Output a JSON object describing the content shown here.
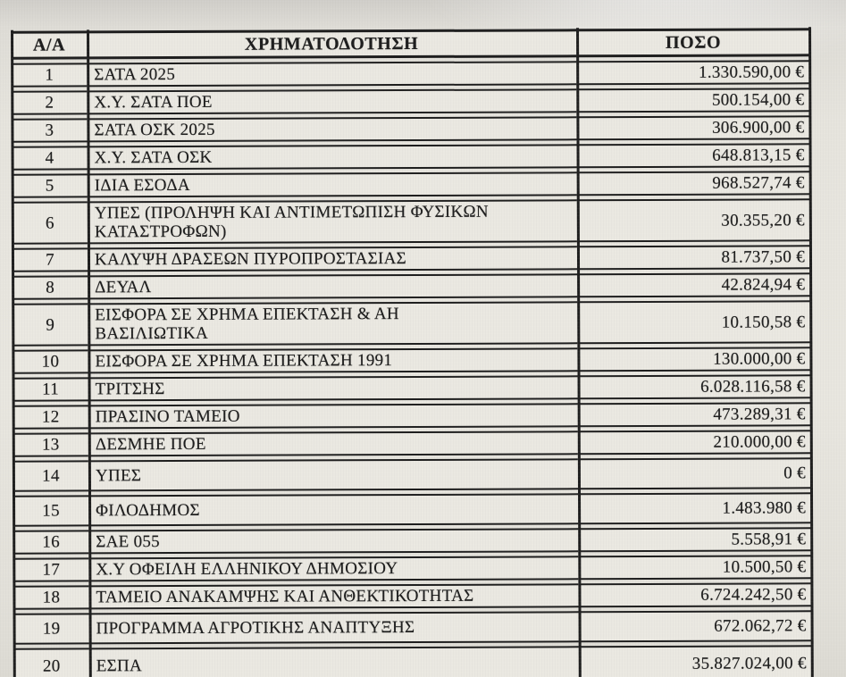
{
  "document": {
    "type": "scanned funding table",
    "colors": {
      "paper": "#e6e4dd",
      "cell": "#eae8e1",
      "ink": "#1d1d1d",
      "border": "#1e1e1e"
    },
    "table": {
      "headers": {
        "index": "Α/Α",
        "funding": "ΧΡΗΜΑΤΟΔΟΤΗΣΗ",
        "amount": "ΠΟΣΟ"
      },
      "rows": [
        {
          "no": "1",
          "name": "ΣΑΤΑ 2025",
          "amount": "1.330.590,00 €"
        },
        {
          "no": "2",
          "name": "Χ.Υ. ΣΑΤΑ ΠΟΕ",
          "amount": "500.154,00 €"
        },
        {
          "no": "3",
          "name": "ΣΑΤΑ ΟΣΚ 2025",
          "amount": "306.900,00 €"
        },
        {
          "no": "4",
          "name": "Χ.Υ. ΣΑΤΑ ΟΣΚ",
          "amount": "648.813,15 €"
        },
        {
          "no": "5",
          "name": "ΙΔΙΑ ΕΣΟΔΑ",
          "amount": "968.527,74 €"
        },
        {
          "no": "6",
          "name": "ΥΠΕΣ (ΠΡΟΛΗΨΗ ΚΑΙ ΑΝΤΙΜΕΤΩΠΙΣΗ ΦΥΣΙΚΩΝ\n ΚΑΤΑΣΤΡΟΦΩΝ)",
          "amount": "30.355,20 €"
        },
        {
          "no": "7",
          "name": "ΚΑΛΥΨΗ ΔΡΑΣΕΩΝ ΠΥΡΟΠΡΟΣΤΑΣΙΑΣ",
          "amount": "81.737,50 €"
        },
        {
          "no": "8",
          "name": "ΔΕΥΑΛ",
          "amount": "42.824,94 €"
        },
        {
          "no": "9",
          "name": "ΕΙΣΦΟΡΑ ΣΕ ΧΡΗΜΑ ΕΠΕΚΤΑΣΗ & ΑΗ\nΒΑΣΙΛΙΩΤΙΚΑ",
          "amount": "10.150,58 €"
        },
        {
          "no": "10",
          "name": "ΕΙΣΦΟΡΑ ΣΕ ΧΡΗΜΑ ΕΠΕΚΤΑΣΗ 1991",
          "amount": "130.000,00 €"
        },
        {
          "no": "11",
          "name": "ΤΡΙΤΣΗΣ",
          "amount": "6.028.116,58 €"
        },
        {
          "no": "12",
          "name": "ΠΡΑΣΙΝΟ ΤΑΜΕΙΟ",
          "amount": "473.289,31 €"
        },
        {
          "no": "13",
          "name": "ΔΕΣΜΗΕ ΠΟΕ",
          "amount": "210.000,00 €"
        },
        {
          "no": "14",
          "name": "ΥΠΕΣ",
          "amount": "0 €"
        },
        {
          "no": "15",
          "name": "ΦΙΛΟΔΗΜΟΣ",
          "amount": "1.483.980 €"
        },
        {
          "no": "16",
          "name": "ΣΑΕ 055",
          "amount": "5.558,91 €"
        },
        {
          "no": "17",
          "name": "Χ.Υ ΟΦΕΙΛΗ ΕΛΛΗΝΙΚΟΥ ΔΗΜΟΣΙΟΥ",
          "amount": "10.500,50 €"
        },
        {
          "no": "18",
          "name": "ΤΑΜΕΙΟ ΑΝΑΚΑΜΨΗΣ ΚΑΙ ΑΝΘΕΚΤΙΚΟΤΗΤΑΣ",
          "amount": "6.724.242,50 €"
        },
        {
          "no": "19",
          "name": "ΠΡΟΓΡΑΜΜΑ ΑΓΡΟΤΙΚΗΣ ΑΝΑΠΤΥΞΗΣ",
          "amount": "672.062,72 €"
        },
        {
          "no": "20",
          "name": "ΕΣΠΑ",
          "amount": "35.827.024,00 €"
        }
      ]
    }
  }
}
